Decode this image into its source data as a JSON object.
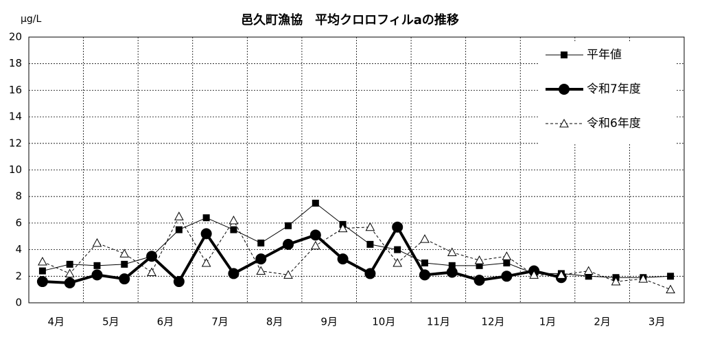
{
  "chart_data": {
    "type": "line",
    "title": "邑久町漁協　平均クロロフィルaの推移",
    "y_label": "μg/L",
    "categories": [
      "4月",
      null,
      "5月",
      null,
      "6月",
      null,
      "7月",
      null,
      "8月",
      null,
      "9月",
      null,
      "10月",
      null,
      "11月",
      null,
      "12月",
      null,
      "1月",
      null,
      "2月",
      null,
      "3月",
      null
    ],
    "ylim": [
      0,
      20
    ],
    "yticks": [
      0,
      2,
      4,
      6,
      8,
      10,
      12,
      14,
      16,
      18,
      20
    ],
    "grid": true,
    "legend": "upper right",
    "series": [
      {
        "name": "平年値",
        "color": "#000000",
        "marker": "square",
        "line_style": "solid",
        "line_width": 1,
        "values": [
          2.4,
          2.9,
          2.8,
          2.9,
          3.5,
          5.5,
          6.4,
          5.5,
          4.5,
          5.8,
          7.5,
          5.9,
          4.4,
          4.0,
          3.0,
          2.8,
          2.8,
          3.0,
          2.2,
          2.2,
          2.0,
          1.9,
          1.9,
          2.0
        ]
      },
      {
        "name": "令和7年度",
        "color": "#000000",
        "marker": "circle",
        "line_style": "solid",
        "line_width": 4,
        "values": [
          1.6,
          1.5,
          2.1,
          1.8,
          3.5,
          1.6,
          5.2,
          2.2,
          3.3,
          4.4,
          5.1,
          3.3,
          2.2,
          5.7,
          2.1,
          2.3,
          1.7,
          2.0,
          2.4,
          1.9,
          null,
          null,
          null,
          null
        ]
      },
      {
        "name": "令和6年度",
        "color": "#000000",
        "marker": "triangle",
        "line_style": "dashed",
        "line_width": 1,
        "values": [
          3.1,
          2.2,
          4.5,
          3.7,
          2.3,
          6.5,
          3.0,
          6.2,
          2.4,
          2.1,
          4.3,
          5.6,
          5.7,
          3.0,
          4.8,
          3.8,
          3.2,
          3.5,
          2.1,
          2.1,
          2.4,
          1.6,
          1.8,
          1.0
        ]
      }
    ]
  }
}
